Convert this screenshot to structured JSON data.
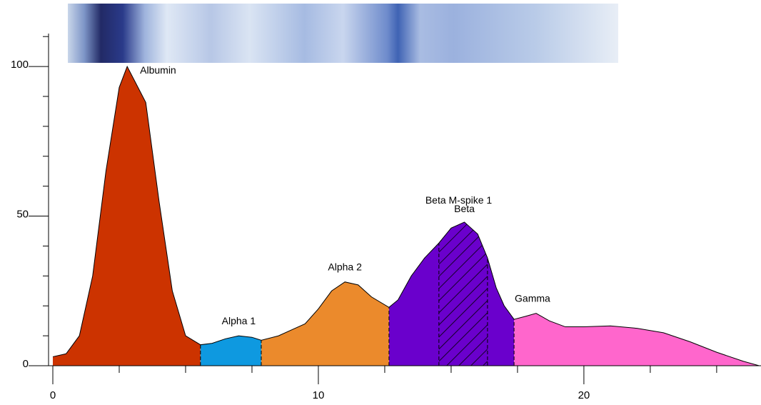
{
  "chart_data": {
    "type": "electropherogram",
    "x": [
      0,
      0.5,
      1,
      1.5,
      2,
      2.5,
      2.8,
      3.5,
      4,
      4.5,
      5,
      5.56,
      6,
      6.5,
      7,
      7.5,
      7.85,
      8.5,
      9,
      9.5,
      10,
      10.5,
      11,
      11.5,
      12,
      12.66,
      13,
      13.5,
      14,
      14.54,
      15,
      15.5,
      16,
      16.37,
      16.7,
      17,
      17.37,
      17.8,
      18.2,
      18.7,
      19.3,
      20,
      21,
      22,
      23,
      24,
      25,
      26,
      26.6
    ],
    "values": [
      3,
      4,
      10,
      30,
      65,
      93,
      100,
      88,
      55,
      25,
      10,
      7,
      7.5,
      9,
      10,
      9.5,
      8.5,
      10,
      12,
      14,
      19,
      25,
      28,
      27,
      23,
      19.5,
      22,
      30,
      36,
      41,
      46,
      48,
      44,
      36,
      26,
      20,
      15.5,
      16.5,
      17.5,
      15,
      13,
      13,
      13.3,
      12.5,
      11,
      8,
      4.5,
      1.5,
      0
    ],
    "fractions": [
      {
        "name": "Albumin",
        "color": "#cc3300",
        "start": 0,
        "end": 5.56
      },
      {
        "name": "Alpha 1",
        "color": "#0e99e0",
        "start": 5.56,
        "end": 7.85
      },
      {
        "name": "Alpha 2",
        "color": "#eb8a2c",
        "start": 7.85,
        "end": 12.66
      },
      {
        "name": "Beta",
        "color": "#6a00cc",
        "start": 12.66,
        "end": 17.37
      },
      {
        "name": "Gamma",
        "color": "#ff66cc",
        "start": 17.37,
        "end": 26.6
      }
    ],
    "m_spike": {
      "name": "Beta M-spike 1",
      "start": 14.54,
      "end": 16.37
    },
    "xlim": [
      0,
      26.67
    ],
    "ylim": [
      0,
      111
    ],
    "xticks": [
      0,
      10,
      20
    ],
    "yticks": [
      0,
      50,
      100
    ],
    "xminor_ticks": [
      2.5,
      5,
      7.5,
      12.5,
      15,
      17.5,
      22.5,
      25
    ],
    "yminor_ticks": [
      10,
      20,
      30,
      40,
      60,
      70,
      80,
      90,
      110
    ]
  }
}
